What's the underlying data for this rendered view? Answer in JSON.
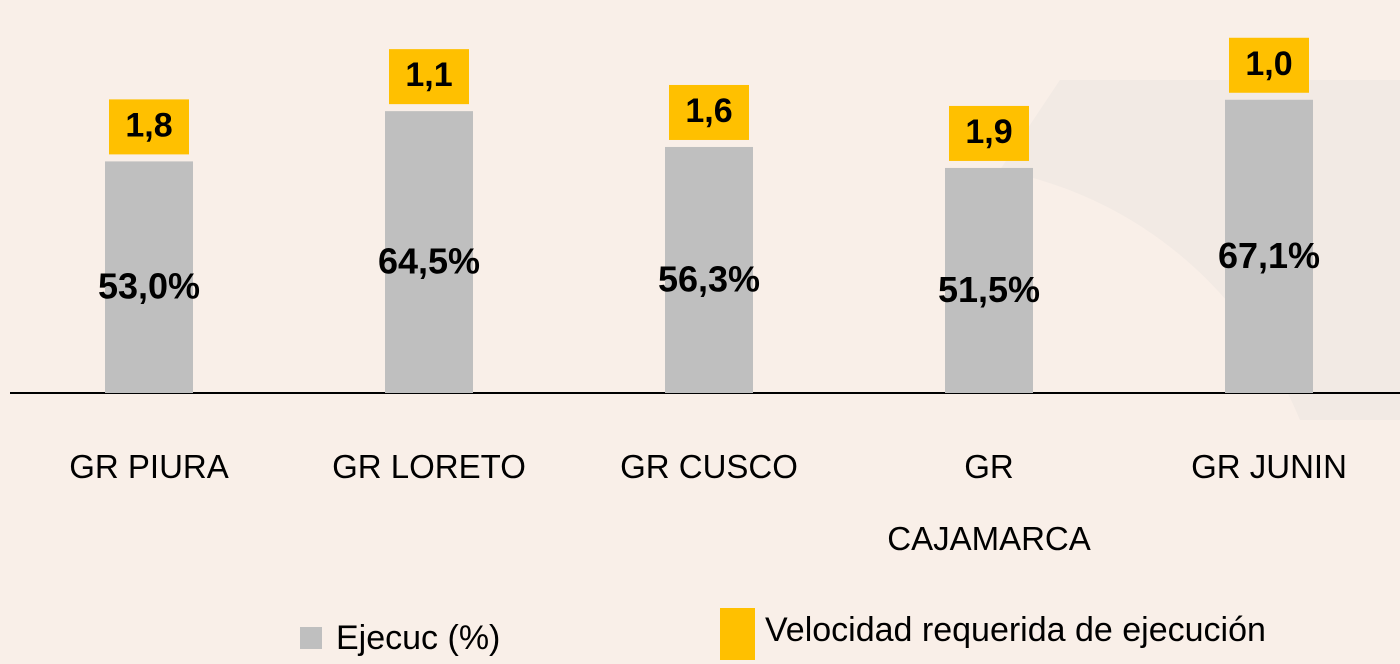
{
  "chart_data": {
    "type": "bar",
    "categories": [
      "GR PIURA",
      "GR LORETO",
      "GR CUSCO",
      "GR CAJAMARCA",
      "GR JUNIN"
    ],
    "series": [
      {
        "name": "Ejecuc (%)",
        "color": "#bfbfbf",
        "values": [
          53.0,
          64.5,
          56.3,
          51.5,
          67.1
        ],
        "value_labels": [
          "53,0%",
          "64,5%",
          "56,3%",
          "51,5%",
          "67,1%"
        ]
      },
      {
        "name": "Velocidad requerida de ejecución",
        "color": "#ffc000",
        "values": [
          1.8,
          1.1,
          1.6,
          1.9,
          1.0
        ],
        "value_labels": [
          "1,8",
          "1,1",
          "1,6",
          "1,9",
          "1,0"
        ]
      }
    ]
  }
}
